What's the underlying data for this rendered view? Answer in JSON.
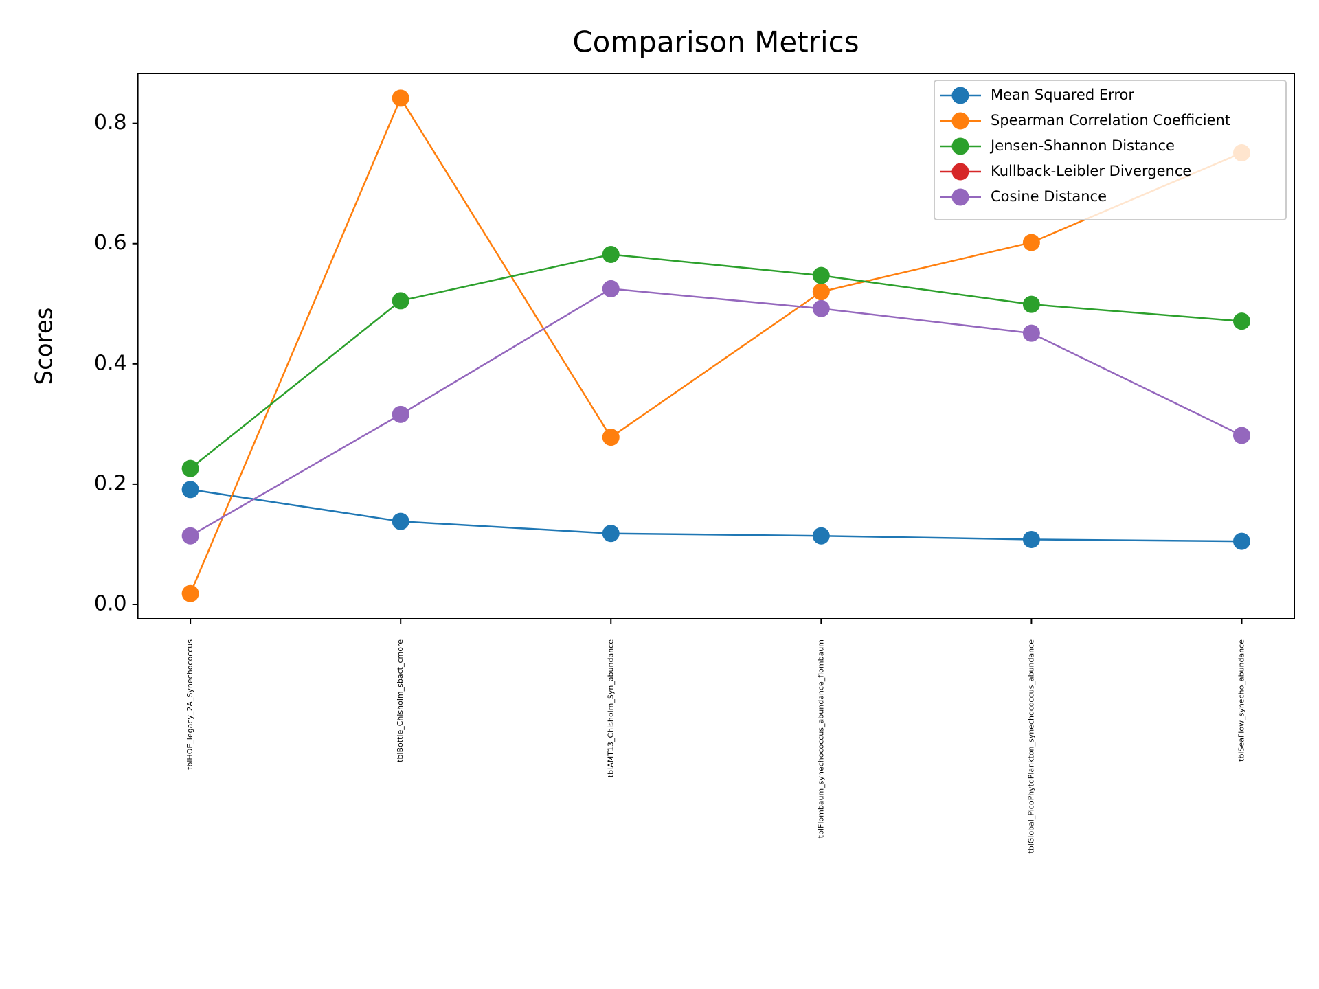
{
  "chart_data": {
    "type": "line",
    "title": "Comparison Metrics",
    "y_label": "Scores",
    "categories": [
      "tblHOE_legacy_2A_Synechococcus",
      "tblBottle_Chisholm_sbact_cmore",
      "tblAMT13_Chisholm_Syn_abundance",
      "tblFlombaum_synechococcus_abundance_flombaum",
      "tblGlobal_PicoPhytoPlankton_synechococcus_abundance",
      "tblSeaFlow_synecho_abundance"
    ],
    "series": [
      {
        "name": "Mean Squared Error",
        "color": "#1f77b4",
        "values": [
          0.191,
          0.138,
          0.118,
          0.114,
          0.108,
          0.105
        ]
      },
      {
        "name": "Spearman Correlation Coefficient",
        "color": "#ff7f0e",
        "values": [
          0.018,
          0.842,
          0.278,
          0.52,
          0.602,
          0.751
        ]
      },
      {
        "name": "Jensen-Shannon Distance",
        "color": "#2ca02c",
        "values": [
          0.226,
          0.505,
          0.582,
          0.547,
          0.499,
          0.471
        ]
      },
      {
        "name": "Kullback-Leibler Divergence",
        "color": "#d62728",
        "values": [
          null,
          null,
          null,
          null,
          null,
          null
        ]
      },
      {
        "name": "Cosine Distance",
        "color": "#9467bd",
        "values": [
          0.114,
          0.316,
          0.525,
          0.492,
          0.451,
          0.281
        ]
      }
    ],
    "ylim": [
      -0.024,
      0.883
    ],
    "yticks": [
      {
        "value": 0,
        "label": "0.0"
      },
      0.2,
      0.4,
      0.6,
      0.8
    ],
    "legend": "upper right",
    "grid": false
  }
}
